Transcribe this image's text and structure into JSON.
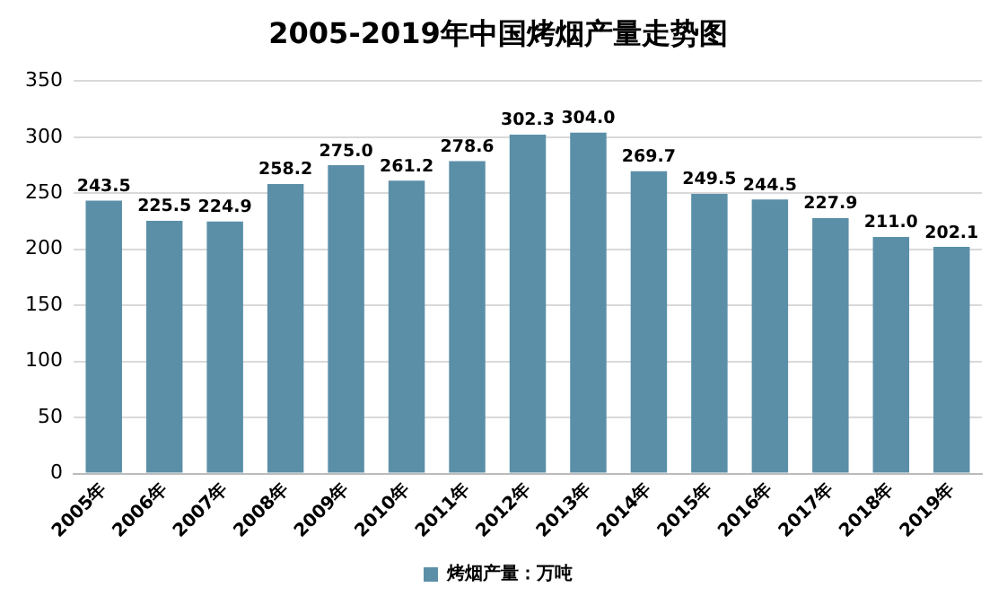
{
  "chart_data": {
    "type": "bar",
    "title": "2005-2019年中国烤烟产量走势图",
    "categories": [
      "2005年",
      "2006年",
      "2007年",
      "2008年",
      "2009年",
      "2010年",
      "2011年",
      "2012年",
      "2013年",
      "2014年",
      "2015年",
      "2016年",
      "2017年",
      "2018年",
      "2019年"
    ],
    "series": [
      {
        "name": "烤烟产量：万吨",
        "color": "#5b8fa8",
        "values": [
          243.5,
          225.5,
          224.9,
          258.2,
          275.0,
          261.2,
          278.6,
          302.3,
          304.0,
          269.7,
          249.5,
          244.5,
          227.9,
          211.0,
          202.1
        ]
      }
    ],
    "value_labels": [
      "243.5",
      "225.5",
      "224.9",
      "258.2",
      "275.0",
      "261.2",
      "278.6",
      "302.3",
      "304.0",
      "269.7",
      "249.5",
      "244.5",
      "227.9",
      "211.0",
      "202.1"
    ],
    "ylim": [
      0,
      350
    ],
    "yticks": [
      0,
      50,
      100,
      150,
      200,
      250,
      300,
      350
    ],
    "grid": "y",
    "legend": "bottom"
  }
}
